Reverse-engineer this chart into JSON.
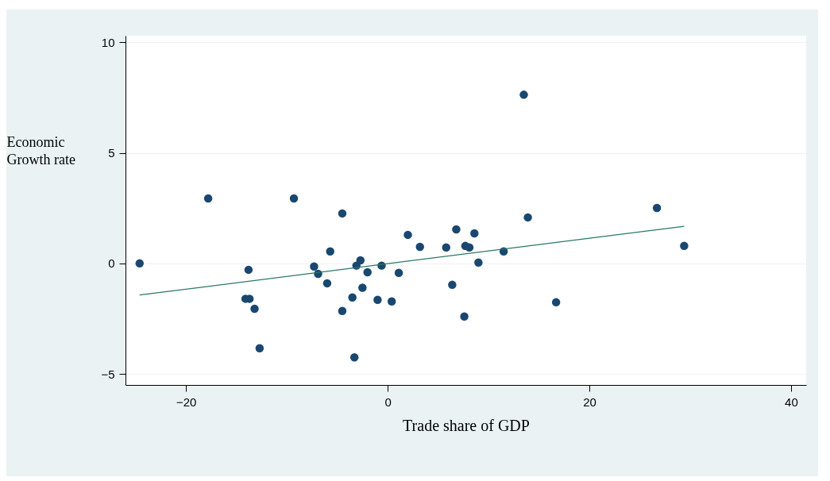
{
  "chart_data": {
    "type": "scatter",
    "xlabel": "Trade share of GDP",
    "ylabel": "Economic Growth rate",
    "xlim": [
      -26,
      41.5
    ],
    "ylim": [
      -5.5,
      10.3
    ],
    "xticks": [
      -20,
      0,
      20,
      40
    ],
    "yticks": [
      -5,
      0,
      5,
      10
    ],
    "grid": "y",
    "series": [
      {
        "marker": "circle",
        "color": "#1a476f",
        "x": [
          -24.6,
          -17.8,
          -13.8,
          -14.1,
          -13.7,
          -13.2,
          -12.7,
          -9.3,
          -7.3,
          -6.9,
          -5.7,
          -6.0,
          -4.5,
          -4.5,
          -3.5,
          -3.3,
          -3.1,
          -2.7,
          -2.5,
          -2.0,
          -1.0,
          -0.6,
          0.4,
          1.1,
          2.0,
          3.2,
          5.8,
          6.4,
          6.8,
          7.7,
          8.1,
          8.6,
          7.6,
          9.0,
          11.5,
          13.5,
          13.9,
          16.7,
          26.7,
          29.4
        ],
        "values": [
          0.0,
          2.94,
          -0.29,
          -1.6,
          -1.6,
          -2.05,
          -3.84,
          2.94,
          -0.14,
          -0.47,
          0.54,
          -0.9,
          2.26,
          -2.15,
          -1.54,
          -4.25,
          -0.1,
          0.14,
          -1.1,
          -0.4,
          -1.65,
          -0.1,
          -1.72,
          -0.43,
          1.29,
          0.75,
          0.72,
          -0.97,
          1.54,
          0.79,
          0.72,
          1.36,
          -2.4,
          0.04,
          0.54,
          7.63,
          2.08,
          -1.76,
          2.51,
          0.79
        ]
      },
      {
        "type": "line",
        "marker": "none",
        "color": "#2a7768",
        "x": [
          -24.6,
          29.4
        ],
        "values": [
          -1.43,
          1.68
        ]
      }
    ]
  }
}
